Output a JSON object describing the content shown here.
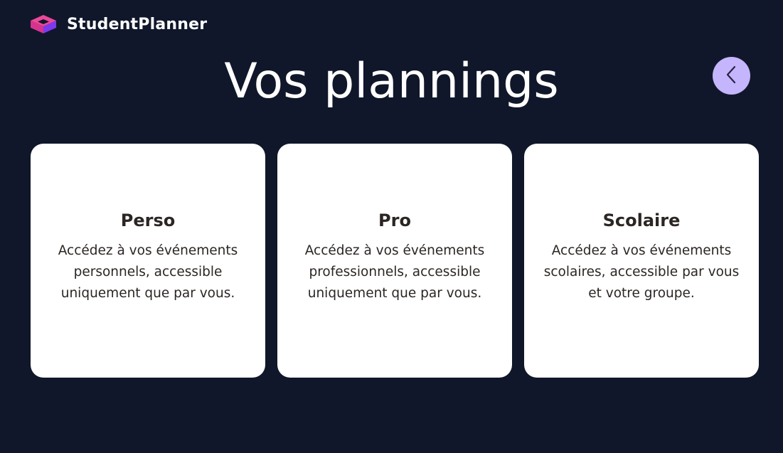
{
  "header": {
    "app_name": "StudentPlanner",
    "logo_icon": "cube-logo-icon",
    "back_icon": "chevron-left-icon"
  },
  "page": {
    "title": "Vos plannings"
  },
  "cards": [
    {
      "title": "Perso",
      "description": "Accédez à vos événements personnels, accessible uniquement que par vous."
    },
    {
      "title": "Pro",
      "description": "Accédez à vos événements professionnels, accessible uniquement que par vous."
    },
    {
      "title": "Scolaire",
      "description": "Accédez à vos événements scolaires, accessible par vous et votre groupe."
    }
  ],
  "colors": {
    "background": "#10172a",
    "card_background": "#ffffff",
    "card_text": "#2b2623",
    "back_button": "#c4b5fd",
    "logo_pink": "#ec4899",
    "logo_purple": "#7c3aed"
  }
}
